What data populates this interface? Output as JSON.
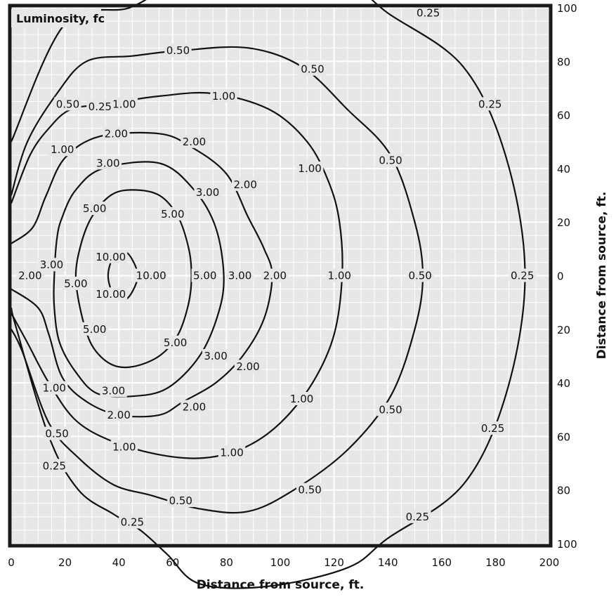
{
  "chart_data": {
    "type": "contour",
    "title": "Luminosity, fc",
    "xlabel": "Distance from source, ft.",
    "ylabel": "Distance from source, ft.",
    "xlim": [
      0,
      200
    ],
    "ylim": [
      -100,
      100
    ],
    "x_ticks": [
      "0",
      "20",
      "40",
      "60",
      "80",
      "100",
      "120",
      "140",
      "160",
      "180",
      "200"
    ],
    "y_ticks": [
      {
        "value": 100,
        "label": "100"
      },
      {
        "value": 80,
        "label": "80"
      },
      {
        "value": 60,
        "label": "60"
      },
      {
        "value": 40,
        "label": "40"
      },
      {
        "value": 20,
        "label": "20"
      },
      {
        "value": 0,
        "label": "0"
      },
      {
        "value": -20,
        "label": "20"
      },
      {
        "value": -40,
        "label": "40"
      },
      {
        "value": -60,
        "label": "60"
      },
      {
        "value": -80,
        "label": "80"
      },
      {
        "value": -100,
        "label": "100"
      }
    ],
    "grid": "major and minor",
    "colors": {
      "background": "#e6e7e8",
      "grid": "#ffffff",
      "line": "#111111",
      "frame": "#1a1a1a"
    },
    "contours": [
      {
        "level": "0.25",
        "points": [
          [
            0,
            50
          ],
          [
            20,
            94
          ],
          [
            44,
            100
          ],
          [
            59,
            109
          ],
          [
            70,
            115
          ],
          [
            95,
            116
          ],
          [
            125,
            109
          ],
          [
            140,
            98
          ],
          [
            168,
            78
          ],
          [
            184,
            44
          ],
          [
            191,
            0
          ],
          [
            184,
            -44
          ],
          [
            168,
            -78
          ],
          [
            140,
            -98
          ],
          [
            125,
            -109
          ],
          [
            95,
            -116
          ],
          [
            70,
            -115
          ],
          [
            58,
            -104
          ],
          [
            48,
            -95
          ],
          [
            38,
            -89
          ],
          [
            25,
            -80
          ],
          [
            14,
            -60
          ],
          [
            2,
            -20
          ],
          [
            0,
            -12
          ]
        ]
      },
      {
        "level": "0.50",
        "points": [
          [
            0,
            30
          ],
          [
            6,
            50
          ],
          [
            17,
            68
          ],
          [
            28,
            80
          ],
          [
            45,
            82
          ],
          [
            63,
            84
          ],
          [
            88,
            85
          ],
          [
            108,
            78
          ],
          [
            125,
            62
          ],
          [
            141,
            45
          ],
          [
            150,
            20
          ],
          [
            153,
            0
          ],
          [
            150,
            -20
          ],
          [
            141,
            -45
          ],
          [
            125,
            -65
          ],
          [
            105,
            -80
          ],
          [
            88,
            -88
          ],
          [
            70,
            -87
          ],
          [
            52,
            -82
          ],
          [
            38,
            -78
          ],
          [
            25,
            -68
          ],
          [
            14,
            -55
          ],
          [
            4,
            -28
          ],
          [
            0,
            -20
          ]
        ]
      },
      {
        "level": "1.00",
        "points": [
          [
            0,
            27
          ],
          [
            7,
            45
          ],
          [
            14,
            55
          ],
          [
            22,
            62
          ],
          [
            35,
            64
          ],
          [
            55,
            67
          ],
          [
            75,
            68
          ],
          [
            96,
            62
          ],
          [
            110,
            50
          ],
          [
            118,
            35
          ],
          [
            122,
            20
          ],
          [
            123,
            0
          ],
          [
            120,
            -22
          ],
          [
            112,
            -40
          ],
          [
            100,
            -55
          ],
          [
            87,
            -64
          ],
          [
            72,
            -68
          ],
          [
            56,
            -67
          ],
          [
            38,
            -62
          ],
          [
            24,
            -54
          ],
          [
            14,
            -40
          ],
          [
            6,
            -25
          ],
          [
            0,
            -14
          ]
        ]
      },
      {
        "level": "2.00",
        "points": [
          [
            0,
            12
          ],
          [
            8,
            18
          ],
          [
            13,
            30
          ],
          [
            20,
            44
          ],
          [
            33,
            52
          ],
          [
            55,
            53
          ],
          [
            67,
            48
          ],
          [
            80,
            38
          ],
          [
            88,
            22
          ],
          [
            94,
            10
          ],
          [
            97,
            0
          ],
          [
            94,
            -16
          ],
          [
            86,
            -30
          ],
          [
            76,
            -40
          ],
          [
            64,
            -47
          ],
          [
            55,
            -52
          ],
          [
            40,
            -52
          ],
          [
            28,
            -47
          ],
          [
            19,
            -38
          ],
          [
            14,
            -22
          ],
          [
            10,
            -12
          ],
          [
            0,
            -5
          ]
        ]
      },
      {
        "level": "3.00",
        "points": [
          [
            16,
            0
          ],
          [
            17,
            14
          ],
          [
            19,
            22
          ],
          [
            24,
            32
          ],
          [
            34,
            40
          ],
          [
            55,
            42
          ],
          [
            68,
            32
          ],
          [
            76,
            18
          ],
          [
            79,
            0
          ],
          [
            77,
            -14
          ],
          [
            70,
            -30
          ],
          [
            58,
            -42
          ],
          [
            45,
            -45
          ],
          [
            32,
            -44
          ],
          [
            24,
            -36
          ],
          [
            18,
            -25
          ],
          [
            16,
            -12
          ],
          [
            16,
            0
          ]
        ]
      },
      {
        "level": "5.00",
        "points": [
          [
            24,
            0
          ],
          [
            26,
            12
          ],
          [
            30,
            22
          ],
          [
            37,
            30
          ],
          [
            45,
            32
          ],
          [
            55,
            30
          ],
          [
            62,
            22
          ],
          [
            66,
            10
          ],
          [
            67,
            0
          ],
          [
            66,
            -10
          ],
          [
            62,
            -22
          ],
          [
            55,
            -30
          ],
          [
            45,
            -34
          ],
          [
            37,
            -33
          ],
          [
            30,
            -26
          ],
          [
            26,
            -14
          ],
          [
            24,
            0
          ]
        ]
      },
      {
        "level": "10.00",
        "points": [
          [
            36,
            0
          ],
          [
            38,
            7
          ],
          [
            42,
            9
          ],
          [
            45,
            6
          ],
          [
            47,
            0
          ],
          [
            45,
            -6
          ],
          [
            42,
            -9
          ],
          [
            38,
            -7
          ],
          [
            36,
            0
          ]
        ]
      }
    ],
    "labels": [
      {
        "text": "0.25",
        "x": 33,
        "y": 63
      },
      {
        "text": "0.25",
        "x": 155,
        "y": 98
      },
      {
        "text": "0.25",
        "x": 178,
        "y": 64
      },
      {
        "text": "0.25",
        "x": 190,
        "y": 0
      },
      {
        "text": "0.25",
        "x": 179,
        "y": -57
      },
      {
        "text": "0.25",
        "x": 151,
        "y": -90
      },
      {
        "text": "0.25",
        "x": 16,
        "y": -71
      },
      {
        "text": "0.25",
        "x": 45,
        "y": -92
      },
      {
        "text": "0.50",
        "x": 62,
        "y": 84
      },
      {
        "text": "0.50",
        "x": 112,
        "y": 77
      },
      {
        "text": "0.50",
        "x": 141,
        "y": 43
      },
      {
        "text": "0.50",
        "x": 152,
        "y": 0
      },
      {
        "text": "0.50",
        "x": 141,
        "y": -50
      },
      {
        "text": "0.50",
        "x": 111,
        "y": -80
      },
      {
        "text": "0.50",
        "x": 63,
        "y": -84
      },
      {
        "text": "0.50",
        "x": 17,
        "y": -59
      },
      {
        "text": "0.50",
        "x": 21,
        "y": 64
      },
      {
        "text": "1.00",
        "x": 42,
        "y": 64
      },
      {
        "text": "1.00",
        "x": 79,
        "y": 67
      },
      {
        "text": "1.00",
        "x": 111,
        "y": 40
      },
      {
        "text": "1.00",
        "x": 122,
        "y": 0
      },
      {
        "text": "1.00",
        "x": 108,
        "y": -46
      },
      {
        "text": "1.00",
        "x": 82,
        "y": -66
      },
      {
        "text": "1.00",
        "x": 42,
        "y": -64
      },
      {
        "text": "1.00",
        "x": 16,
        "y": -42
      },
      {
        "text": "1.00",
        "x": 19,
        "y": 47
      },
      {
        "text": "2.00",
        "x": 39,
        "y": 53
      },
      {
        "text": "2.00",
        "x": 68,
        "y": 50
      },
      {
        "text": "2.00",
        "x": 87,
        "y": 34
      },
      {
        "text": "2.00",
        "x": 98,
        "y": 0
      },
      {
        "text": "2.00",
        "x": 88,
        "y": -34
      },
      {
        "text": "2.00",
        "x": 68,
        "y": -49
      },
      {
        "text": "2.00",
        "x": 40,
        "y": -52
      },
      {
        "text": "2.00",
        "x": 7,
        "y": 0
      },
      {
        "text": "3.00",
        "x": 36,
        "y": 42
      },
      {
        "text": "3.00",
        "x": 73,
        "y": 31
      },
      {
        "text": "3.00",
        "x": 85,
        "y": 0
      },
      {
        "text": "3.00",
        "x": 76,
        "y": -30
      },
      {
        "text": "3.00",
        "x": 38,
        "y": -43
      },
      {
        "text": "3.00",
        "x": 15,
        "y": 4
      },
      {
        "text": "5.00",
        "x": 31,
        "y": 25
      },
      {
        "text": "5.00",
        "x": 60,
        "y": 23
      },
      {
        "text": "5.00",
        "x": 72,
        "y": 0
      },
      {
        "text": "5.00",
        "x": 61,
        "y": -25
      },
      {
        "text": "5.00",
        "x": 31,
        "y": -20
      },
      {
        "text": "5.00",
        "x": 24,
        "y": -3
      },
      {
        "text": "10.00",
        "x": 37,
        "y": 7
      },
      {
        "text": "10.00",
        "x": 52,
        "y": 0
      },
      {
        "text": "10.00",
        "x": 37,
        "y": -7
      }
    ]
  }
}
